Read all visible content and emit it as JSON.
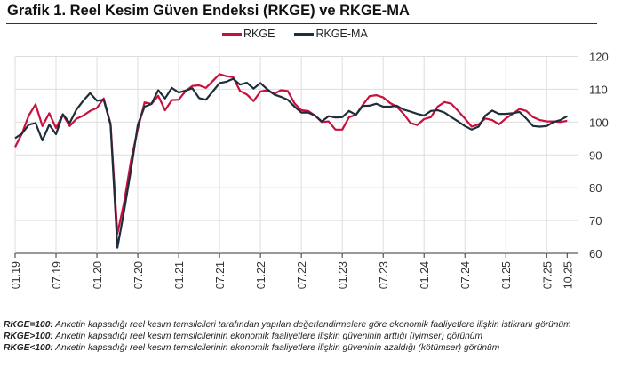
{
  "title": "Grafik 1. Reel Kesim Güven Endeksi (RKGE) ve RKGE-MA",
  "colors": {
    "RKGE": "#c8103e",
    "RKGE-MA": "#1f2d3a",
    "grid": "#dddddd"
  },
  "chart_data": {
    "type": "line",
    "title": "Grafik 1. Reel Kesim Güven Endeksi (RKGE) ve RKGE-MA",
    "x_start": "01.19",
    "x_end": "10.25",
    "frequency": "monthly",
    "xticks": [
      "01.19",
      "07.19",
      "01.20",
      "07.20",
      "01.21",
      "07.21",
      "01.22",
      "07.22",
      "01.23",
      "07.23",
      "01.24",
      "07.24",
      "01.25",
      "07.25",
      "10.25"
    ],
    "yticks": [
      120,
      110,
      100,
      90,
      80,
      70,
      60
    ],
    "ylim": [
      60,
      120
    ],
    "y_axis_side": "right",
    "grid": true,
    "legend_position": "top-center",
    "series": [
      {
        "name": "RKGE",
        "values": [
          92.4,
          96.5,
          102,
          105.4,
          98.8,
          102.7,
          98.2,
          102.3,
          98.8,
          101,
          102,
          103.4,
          104.3,
          107.2,
          99.5,
          66,
          75.6,
          88.3,
          97.9,
          106,
          105.5,
          108,
          103.6,
          106.7,
          106.8,
          109.4,
          111,
          111.2,
          110.4,
          112.5,
          114.6,
          114,
          113.7,
          109.5,
          108.4,
          106.4,
          109.3,
          109.7,
          108.6,
          109.7,
          109.5,
          105.7,
          103.6,
          103.4,
          102,
          100,
          100.2,
          97.7,
          97.7,
          101.5,
          102.2,
          105.2,
          107.9,
          108.2,
          107.5,
          105.8,
          104.7,
          102.5,
          99.7,
          99.1,
          100.9,
          101.5,
          104.7,
          106.1,
          105.6,
          103.4,
          101.1,
          98.6,
          99.3,
          101.1,
          100.6,
          99.3,
          101.1,
          102.5,
          104,
          103.4,
          101.5,
          100.6,
          100.2,
          100.2,
          100,
          100.4
        ]
      },
      {
        "name": "RKGE-MA",
        "values": [
          95.1,
          96.5,
          99.2,
          99.7,
          94.4,
          99.2,
          96.3,
          102.4,
          99.7,
          103.8,
          106.5,
          108.8,
          106.5,
          106.8,
          99.2,
          61.7,
          73,
          85.5,
          99.2,
          104.7,
          105.5,
          109.7,
          107.2,
          110.4,
          109,
          109.6,
          110.3,
          107.3,
          106.8,
          109.3,
          111.9,
          112.3,
          113.2,
          111.4,
          112,
          110.2,
          111.9,
          110,
          108.4,
          107.7,
          106.8,
          104.7,
          102.9,
          102.9,
          102,
          100.2,
          101.8,
          101.4,
          101.5,
          103.4,
          102.2,
          104.9,
          105,
          105.6,
          104.7,
          104.7,
          105,
          103.8,
          103.2,
          102.5,
          102,
          103.4,
          103.6,
          102.9,
          101.5,
          100.2,
          98.8,
          97.7,
          98.6,
          102,
          103.5,
          102.5,
          102.5,
          102.7,
          103.1,
          101.1,
          98.8,
          98.6,
          98.8,
          100,
          100.6,
          101.8
        ]
      }
    ]
  },
  "notes": [
    {
      "label": "RKGE=100:",
      "text": " Anketin kapsadığı reel kesim temsilcileri tarafından yapılan değerlendirmelere göre ekonomik faaliyetlere ilişkin istikrarlı görünüm"
    },
    {
      "label": "RKGE>100:",
      "text": " Anketin kapsadığı reel kesim temsilcilerinin ekonomik faaliyetlere ilişkin güveninin arttığı (iyimser) görünüm"
    },
    {
      "label": "RKGE<100:",
      "text": " Anketin kapsadığı reel kesim temsilcilerinin ekonomik faaliyetlere ilişkin güveninin azaldığı (kötümser) görünüm"
    }
  ]
}
